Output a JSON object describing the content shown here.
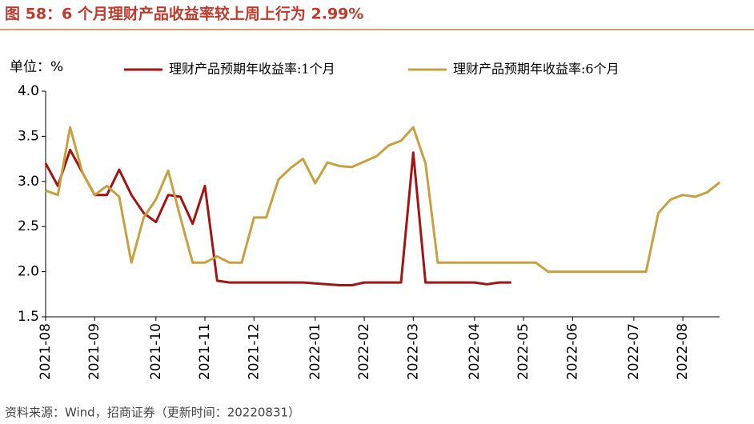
{
  "title": "图 58：6 个月理财产品收益率较上周上行为 2.99%",
  "source": "资料来源：Wind，招商证券（更新时间：20220831）",
  "chart_data": {
    "type": "line",
    "unit_label": "单位：%",
    "categories": [
      "2021-08",
      null,
      null,
      null,
      "2021-09",
      null,
      null,
      null,
      null,
      "2021-10",
      null,
      null,
      null,
      "2021-11",
      null,
      null,
      null,
      "2021-12",
      null,
      null,
      null,
      null,
      "2022-01",
      null,
      null,
      null,
      "2022-02",
      null,
      null,
      null,
      "2022-03",
      null,
      null,
      null,
      null,
      "2022-04",
      null,
      null,
      null,
      "2022-05",
      null,
      null,
      null,
      "2022-06",
      null,
      null,
      null,
      null,
      "2022-07",
      null,
      null,
      null,
      "2022-08",
      null,
      null,
      null
    ],
    "series": [
      {
        "name": "理财产品预期年收益率:1个月",
        "color": "#a31515",
        "values": [
          3.2,
          2.95,
          3.35,
          3.1,
          2.85,
          2.85,
          3.13,
          2.85,
          2.65,
          2.55,
          2.85,
          2.83,
          2.53,
          2.95,
          1.9,
          1.88,
          1.88,
          1.88,
          1.88,
          1.88,
          1.88,
          1.88,
          1.87,
          1.86,
          1.85,
          1.85,
          1.88,
          1.88,
          1.88,
          1.88,
          3.32,
          1.88,
          1.88,
          1.88,
          1.88,
          1.88,
          1.86,
          1.88,
          1.88,
          null,
          null,
          null,
          null,
          null,
          null,
          null,
          null,
          null,
          null,
          null,
          null,
          null,
          null,
          null,
          null,
          null
        ]
      },
      {
        "name": "理财产品预期年收益率:6个月",
        "color": "#c9a040",
        "values": [
          2.9,
          2.85,
          3.6,
          3.1,
          2.85,
          2.95,
          2.83,
          2.1,
          2.6,
          2.8,
          3.12,
          2.6,
          2.1,
          2.1,
          2.17,
          2.1,
          2.1,
          2.6,
          2.6,
          3.02,
          3.15,
          3.25,
          2.98,
          3.21,
          3.17,
          3.16,
          3.22,
          3.28,
          3.4,
          3.45,
          3.6,
          3.2,
          2.1,
          2.1,
          2.1,
          2.1,
          2.1,
          2.1,
          2.1,
          2.1,
          2.1,
          2.0,
          2.0,
          2.0,
          2.0,
          2.0,
          2.0,
          2.0,
          2.0,
          2.0,
          2.65,
          2.8,
          2.85,
          2.83,
          2.88,
          2.99
        ]
      }
    ],
    "ylim": [
      1.5,
      4.0
    ],
    "yticks": [
      1.5,
      {
        "value": 2.0,
        "label": "2.0"
      },
      2.5,
      {
        "value": 3.0,
        "label": "3.0"
      },
      3.5,
      {
        "value": 4.0,
        "label": "4.0"
      }
    ],
    "grid": false
  }
}
